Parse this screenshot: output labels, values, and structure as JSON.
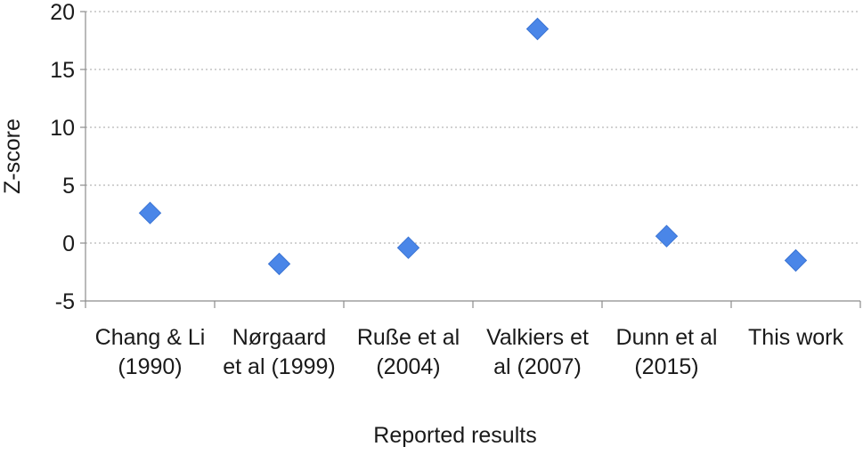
{
  "chart_data": {
    "type": "scatter",
    "title": "",
    "xlabel": "Reported results",
    "ylabel": "Z-score",
    "categories": [
      [
        "Chang & Li",
        "(1990)"
      ],
      [
        "Nørgaard",
        "et al (1999)"
      ],
      [
        "Ruße et al",
        "(2004)"
      ],
      [
        "Valkiers et",
        "al (2007)"
      ],
      [
        "Dunn et al",
        "(2015)"
      ],
      [
        "This work"
      ]
    ],
    "series": [
      {
        "values": [
          2.6,
          -1.8,
          -0.4,
          18.5,
          0.6,
          -1.5
        ]
      }
    ],
    "ylim": [
      -5,
      20
    ],
    "yticks": [
      -5,
      0,
      5,
      10,
      15,
      20
    ],
    "grid": true,
    "marker": "diamond",
    "marker_color": "#4a86e8",
    "marker_stroke": "#3a74d4",
    "grid_color": "#a6a6a6",
    "axis_color": "#8c8c8c"
  }
}
